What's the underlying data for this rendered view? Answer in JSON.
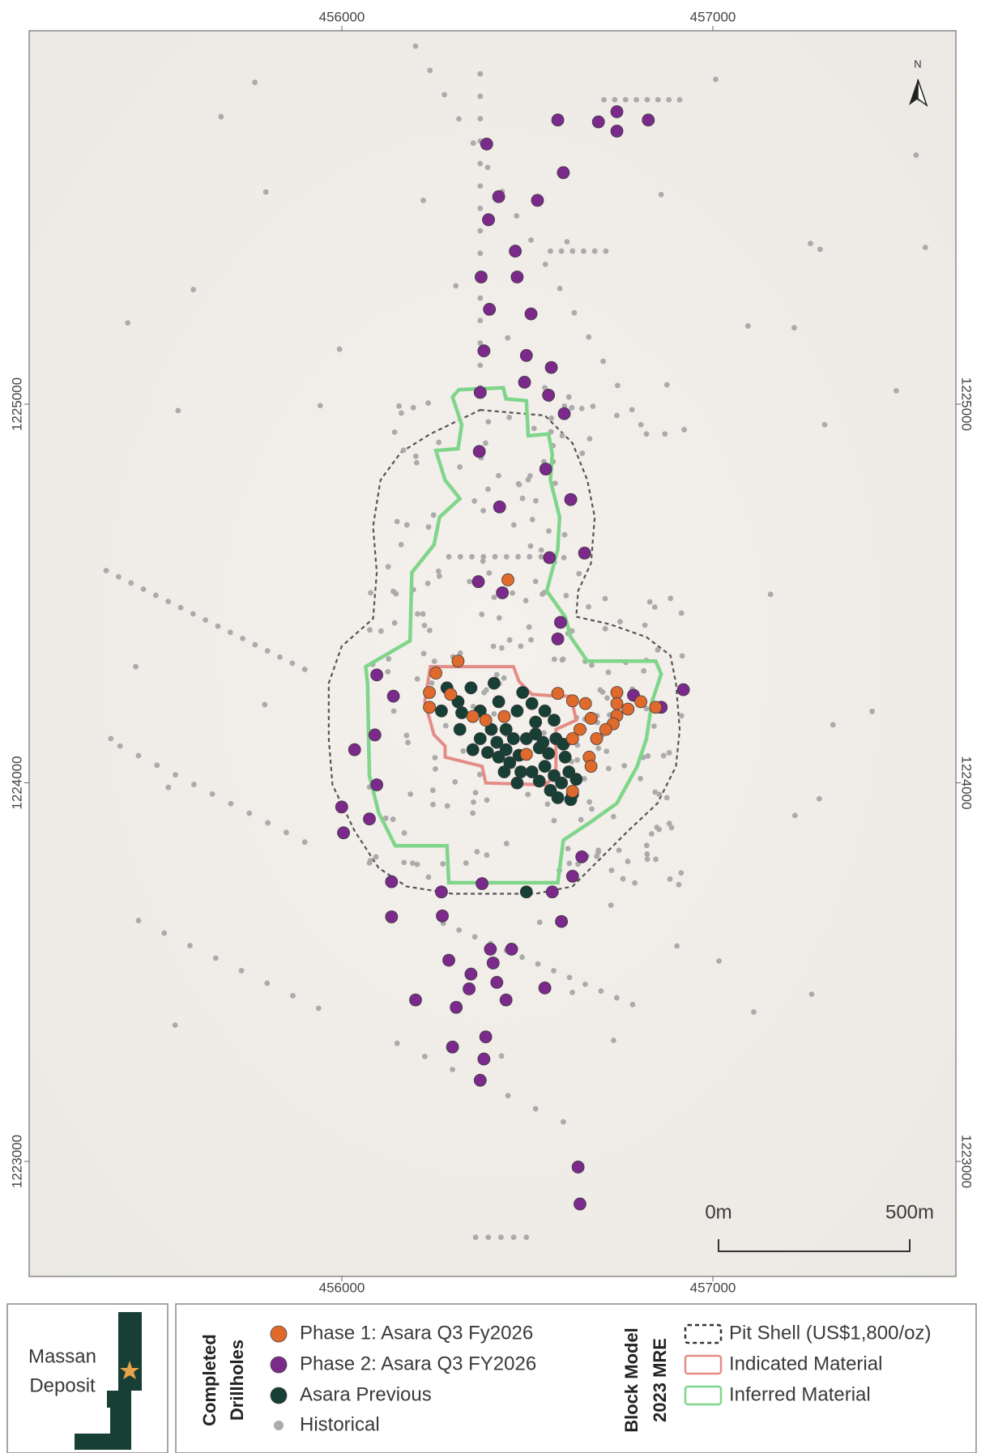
{
  "map": {
    "north": "N",
    "xticks": [
      456000,
      457000
    ],
    "yticks": [
      1223000,
      1224000,
      1225000
    ],
    "scale_bar": {
      "start": "0m",
      "end": "500m"
    }
  },
  "inset": {
    "lines": [
      "Massan",
      "Deposit"
    ]
  },
  "legend": {
    "drillholes": {
      "title": [
        "Completed",
        "Drillholes"
      ],
      "items": [
        "Phase 1: Asara Q3 Fy2026",
        "Phase 2: Asara Q3 FY2026",
        "Asara Previous",
        "Historical"
      ]
    },
    "block_model": {
      "title": [
        "Block Model",
        "2023 MRE"
      ],
      "items": [
        "Pit Shell (US$1,800/oz)",
        "Indicated Material",
        "Inferred Material"
      ]
    }
  }
}
